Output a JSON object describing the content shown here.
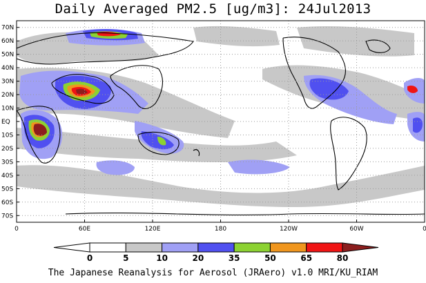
{
  "title": "Daily Averaged PM2.5 [ug/m3]: 24Jul2013",
  "credit": "The Japanese Reanalysis for Aerosol (JRAero) v1.0 MRI/KU_RIAM",
  "map": {
    "projection": "equirectangular",
    "lon_range": [
      0,
      360
    ],
    "lat_range": [
      -75,
      75
    ],
    "lat_ticks": [
      {
        "lat": 70,
        "label": "70N"
      },
      {
        "lat": 60,
        "label": "60N"
      },
      {
        "lat": 50,
        "label": "50N"
      },
      {
        "lat": 40,
        "label": "40N"
      },
      {
        "lat": 30,
        "label": "30N"
      },
      {
        "lat": 20,
        "label": "20N"
      },
      {
        "lat": 10,
        "label": "10N"
      },
      {
        "lat": 0,
        "label": "EQ"
      },
      {
        "lat": -10,
        "label": "10S"
      },
      {
        "lat": -20,
        "label": "20S"
      },
      {
        "lat": -30,
        "label": "30S"
      },
      {
        "lat": -40,
        "label": "40S"
      },
      {
        "lat": -50,
        "label": "50S"
      },
      {
        "lat": -60,
        "label": "60S"
      },
      {
        "lat": -70,
        "label": "70S"
      }
    ],
    "lon_ticks": [
      {
        "lon": 0,
        "label": "0"
      },
      {
        "lon": 60,
        "label": "60E"
      },
      {
        "lon": 120,
        "label": "120E"
      },
      {
        "lon": 180,
        "label": "180"
      },
      {
        "lon": 240,
        "label": "120W"
      },
      {
        "lon": 300,
        "label": "60W"
      },
      {
        "lon": 360,
        "label": "0"
      }
    ]
  },
  "colorbar": {
    "levels": [
      "0",
      "5",
      "10",
      "20",
      "35",
      "50",
      "65",
      "80"
    ],
    "colors": [
      "#ffffff",
      "#ffffff",
      "#c8c8c8",
      "#a0a0f5",
      "#5050f0",
      "#8cd232",
      "#f0961e",
      "#f01414",
      "#8c1e1e"
    ]
  }
}
